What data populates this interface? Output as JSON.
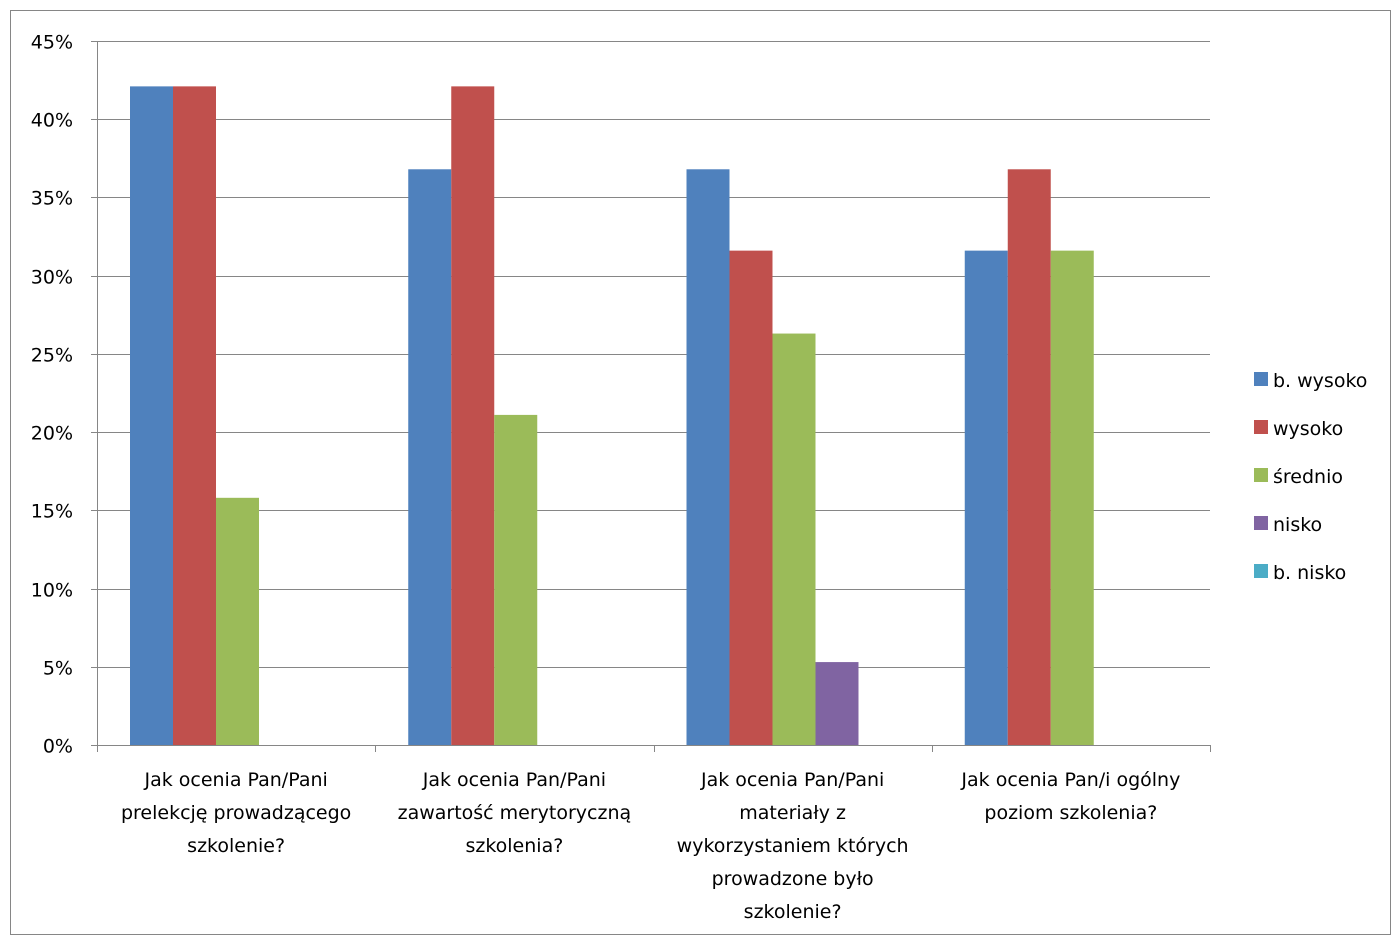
{
  "chart_data": {
    "type": "bar",
    "categories": [
      [
        "Jak ocenia Pan/Pani",
        "prelekcję prowadzącego",
        "szkolenie?"
      ],
      [
        "Jak ocenia Pan/Pani",
        "zawartość merytoryczną",
        "szkolenia?"
      ],
      [
        "Jak ocenia Pan/Pani",
        "materiały z",
        "wykorzystaniem których",
        "prowadzone było",
        "szkolenie?"
      ],
      [
        "Jak ocenia Pan/i ogólny",
        "poziom szkolenia?"
      ]
    ],
    "series": [
      {
        "name": "b. wysoko",
        "color": "#4F81BD",
        "values": [
          42.1,
          36.8,
          36.8,
          31.6
        ]
      },
      {
        "name": "wysoko",
        "color": "#C0504D",
        "values": [
          42.1,
          42.1,
          31.6,
          36.8
        ]
      },
      {
        "name": "średnio",
        "color": "#9BBB59",
        "values": [
          15.8,
          21.1,
          26.3,
          31.6
        ]
      },
      {
        "name": "nisko",
        "color": "#8064A2",
        "values": [
          0,
          0,
          5.3,
          0
        ]
      },
      {
        "name": "b. nisko",
        "color": "#4BACC6",
        "values": [
          0,
          0,
          0,
          0
        ]
      }
    ],
    "yticks": [
      "0%",
      "5%",
      "10%",
      "15%",
      "20%",
      "25%",
      "30%",
      "35%",
      "40%",
      "45%"
    ],
    "ylim": [
      0,
      45
    ],
    "grid": true,
    "legend": "right"
  }
}
